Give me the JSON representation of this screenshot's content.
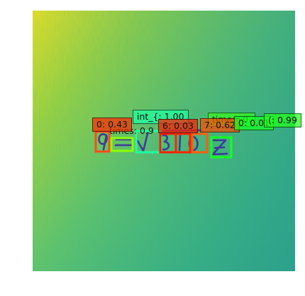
{
  "detections": [
    {
      "label": "0: 0.43",
      "color": "#ff2a00"
    },
    {
      "label": "times: 0.9",
      "color": "#8cff00"
    },
    {
      "label": "int_{: 1.00",
      "color": "#1fffa0"
    },
    {
      "label": "6: 0.03",
      "color": "#ff1a00"
    },
    {
      "label": "7: 0.62",
      "color": "#ff4a00"
    },
    {
      "label": "0: 0.01",
      "color": "#14ff20"
    },
    {
      "label": "(: 0.99",
      "color": "#22ff1a"
    },
    {
      "label": "times: 0.",
      "color": "#34ff10"
    }
  ],
  "handwriting": {
    "text": "9 = √ 3 1 0 z",
    "ink_color": "#3a2f9a"
  },
  "heatmap": {
    "colormap": "viridis"
  }
}
